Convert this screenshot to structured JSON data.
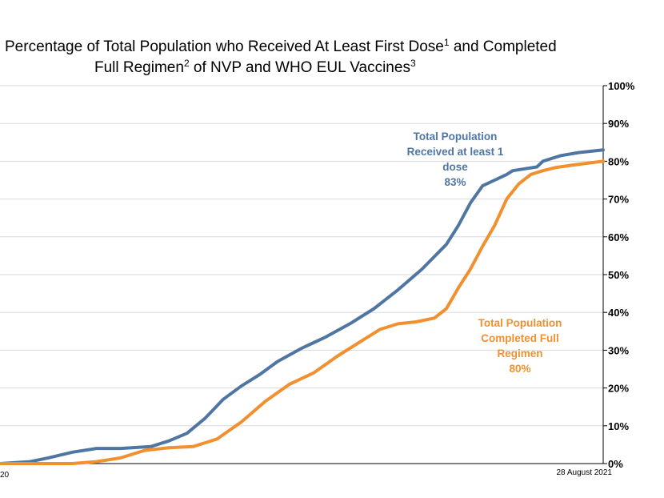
{
  "title": {
    "line1": "Percentage of Total Population who Received At Least First Dose",
    "sup1": "1",
    "line1b": " and Completed",
    "line2": "Full Regimen",
    "sup2": "2",
    "line2b": "  of NVP and WHO EUL Vaccines",
    "sup3": "3"
  },
  "chart_data": {
    "type": "line",
    "title": "Percentage of Total Population who Received At Least First Dose and Completed Full Regimen of NVP and WHO EUL Vaccines",
    "xlabel": "",
    "ylabel": "",
    "ylim": [
      0,
      100
    ],
    "yticks": [
      "0%",
      "10%",
      "20%",
      "30%",
      "40%",
      "50%",
      "60%",
      "70%",
      "80%",
      "90%",
      "100%"
    ],
    "xtick_labels": [
      "20",
      "28 August 2021"
    ],
    "x_range": [
      0,
      100
    ],
    "grid": true,
    "series": [
      {
        "name": "Total Population Received at least 1 dose",
        "color": "#4F76A3",
        "annotation": [
          "Total Population",
          "Received at least 1",
          "dose",
          "83%"
        ],
        "x": [
          0,
          5,
          8,
          12,
          16,
          20,
          25,
          28,
          31,
          34,
          37,
          40,
          43,
          46,
          50,
          54,
          58,
          62,
          66,
          70,
          74,
          76,
          78,
          80,
          82,
          84,
          85,
          87,
          89,
          90,
          91,
          93,
          96,
          100
        ],
        "values": [
          0,
          0.5,
          1.5,
          3,
          4,
          4,
          4.5,
          6,
          8,
          12,
          17,
          20.5,
          23.5,
          27,
          30.5,
          33.5,
          37,
          41,
          46,
          51.5,
          58,
          63,
          69,
          73.5,
          75,
          76.5,
          77.5,
          78,
          78.5,
          80,
          80.5,
          81.5,
          82.3,
          83
        ]
      },
      {
        "name": "Total Population Completed Full Regimen",
        "color": "#F0902E",
        "annotation": [
          "Total Population",
          "Completed Full",
          "Regimen",
          "80%"
        ],
        "x": [
          0,
          12,
          16,
          20,
          24,
          28,
          32,
          36,
          40,
          44,
          48,
          52,
          56,
          60,
          63,
          66,
          69,
          72,
          74,
          76,
          78,
          80,
          82,
          84,
          86,
          88,
          90,
          92,
          95,
          100
        ],
        "values": [
          0,
          0,
          0.5,
          1.5,
          3.5,
          4.2,
          4.5,
          6.5,
          11,
          16.5,
          21,
          24,
          28.5,
          32.5,
          35.5,
          37,
          37.5,
          38.5,
          41,
          46.5,
          51.5,
          57.5,
          63,
          70,
          74,
          76.5,
          77.5,
          78.3,
          79,
          80
        ]
      }
    ]
  }
}
